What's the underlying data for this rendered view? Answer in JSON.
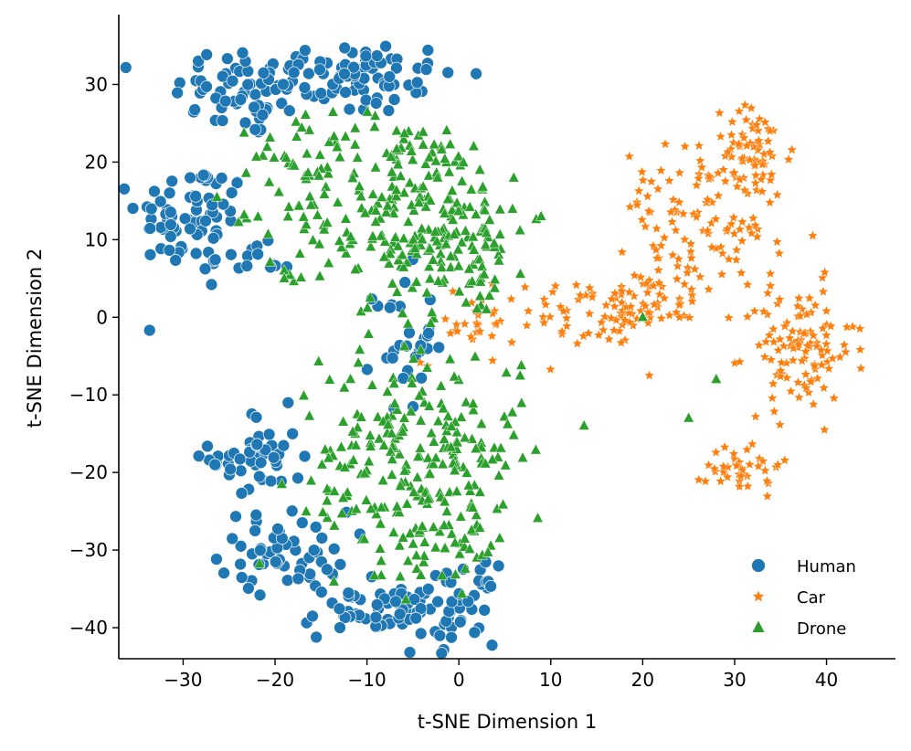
{
  "chart_data": {
    "type": "scatter",
    "title": "",
    "xlabel": "t-SNE Dimension 1",
    "ylabel": "t-SNE Dimension 2",
    "xlim": [
      -37,
      47.5
    ],
    "ylim": [
      -44,
      39
    ],
    "x_ticks": [
      -30,
      -20,
      -10,
      0,
      10,
      20,
      30,
      40
    ],
    "y_ticks": [
      -40,
      -30,
      -20,
      -10,
      0,
      10,
      20,
      30
    ],
    "x_tick_labels": [
      "−30",
      "−20",
      "−10",
      "0",
      "10",
      "20",
      "30",
      "40"
    ],
    "y_tick_labels": [
      "−40",
      "−30",
      "−20",
      "−10",
      "0",
      "10",
      "20",
      "30"
    ],
    "grid": false,
    "legend_position": "lower-right",
    "series": [
      {
        "name": "Human",
        "marker": "circle",
        "color": "#1f77b4",
        "clusters": [
          {
            "cx": -23,
            "cy": 29,
            "sx": 4.0,
            "sy": 3.0,
            "n": 60
          },
          {
            "cx": -12,
            "cy": 31,
            "sx": 6.0,
            "sy": 2.5,
            "n": 80
          },
          {
            "cx": -29,
            "cy": 13,
            "sx": 3.0,
            "sy": 3.5,
            "n": 70
          },
          {
            "cx": -23,
            "cy": 7,
            "sx": 2.5,
            "sy": 1.2,
            "n": 15
          },
          {
            "cx": -6,
            "cy": -3,
            "sx": 1.6,
            "sy": 4.5,
            "n": 30
          },
          {
            "cx": -22,
            "cy": -18,
            "sx": 2.5,
            "sy": 3.0,
            "n": 45
          },
          {
            "cx": -19,
            "cy": -30,
            "sx": 3.5,
            "sy": 2.5,
            "n": 55
          },
          {
            "cx": -9,
            "cy": -38,
            "sx": 4.0,
            "sy": 1.8,
            "n": 55
          },
          {
            "cx": 0,
            "cy": -37,
            "sx": 2.0,
            "sy": 2.5,
            "n": 45
          }
        ]
      },
      {
        "name": "Car",
        "marker": "star",
        "color": "#ff7f0e",
        "clusters": [
          {
            "cx": 32,
            "cy": 21,
            "sx": 2.2,
            "sy": 3.0,
            "n": 70
          },
          {
            "cx": 24,
            "cy": 15,
            "sx": 3.0,
            "sy": 3.5,
            "n": 60
          },
          {
            "cx": 31,
            "cy": 11,
            "sx": 2.5,
            "sy": 3.5,
            "n": 30
          },
          {
            "cx": 12,
            "cy": 1,
            "sx": 4.0,
            "sy": 2.0,
            "n": 40
          },
          {
            "cx": 18,
            "cy": 0,
            "sx": 2.0,
            "sy": 2.5,
            "n": 45
          },
          {
            "cx": 23,
            "cy": 4,
            "sx": 3.0,
            "sy": 2.5,
            "n": 35
          },
          {
            "cx": 1,
            "cy": -1,
            "sx": 2.5,
            "sy": 2.5,
            "n": 25
          },
          {
            "cx": 37,
            "cy": -4,
            "sx": 3.0,
            "sy": 4.0,
            "n": 110
          },
          {
            "cx": 31,
            "cy": -19,
            "sx": 2.0,
            "sy": 2.0,
            "n": 40
          }
        ]
      },
      {
        "name": "Drone",
        "marker": "triangle",
        "color": "#2ca02c",
        "clusters": [
          {
            "cx": -6,
            "cy": 14,
            "sx": 6.5,
            "sy": 6.0,
            "n": 220
          },
          {
            "cx": 1,
            "cy": 10,
            "sx": 3.5,
            "sy": 4.0,
            "n": 60
          },
          {
            "cx": -18,
            "cy": 19,
            "sx": 3.0,
            "sy": 6.0,
            "n": 30
          },
          {
            "cx": -4,
            "cy": -17,
            "sx": 5.5,
            "sy": 7.0,
            "n": 200
          },
          {
            "cx": 0,
            "cy": -28,
            "sx": 3.0,
            "sy": 3.0,
            "n": 40
          },
          {
            "cx": -12,
            "cy": -22,
            "sx": 3.0,
            "sy": 5.0,
            "n": 30
          }
        ],
        "points": [
          [
            20,
            0
          ],
          [
            25,
            -13
          ],
          [
            28,
            -8
          ],
          [
            -19,
            6
          ],
          [
            -19,
            5
          ],
          [
            3,
            1
          ]
        ]
      }
    ]
  }
}
